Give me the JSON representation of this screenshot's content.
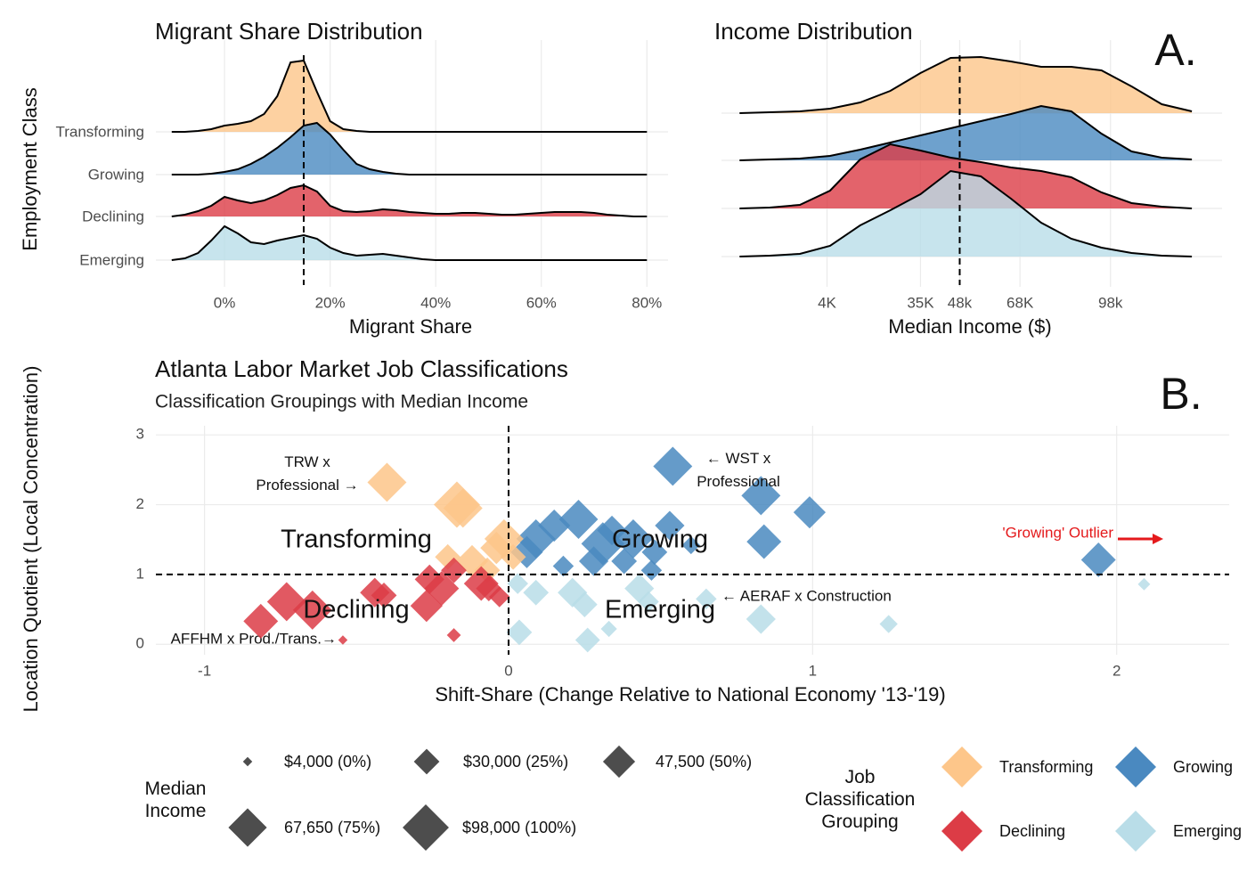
{
  "chart_data": [
    {
      "type": "ridgeline",
      "title": "Migrant Share Distribution",
      "y_label": "Employment Class",
      "x_label": "Migrant Share",
      "xlim": [
        -0.13,
        0.84
      ],
      "xticks": [
        {
          "value": 0,
          "label": "0%"
        },
        {
          "value": 0.2,
          "label": "20%"
        },
        {
          "value": 0.4,
          "label": "40%"
        },
        {
          "value": 0.6,
          "label": "60%"
        },
        {
          "value": 0.8,
          "label": "80%"
        }
      ],
      "median": 0.15,
      "x": [
        -0.1,
        -0.075,
        -0.05,
        -0.025,
        0,
        0.025,
        0.05,
        0.075,
        0.1,
        0.125,
        0.15,
        0.175,
        0.2,
        0.225,
        0.25,
        0.275,
        0.3,
        0.325,
        0.35,
        0.375,
        0.4,
        0.425,
        0.45,
        0.475,
        0.5,
        0.525,
        0.55,
        0.575,
        0.6,
        0.625,
        0.65,
        0.675,
        0.7,
        0.725,
        0.75,
        0.775,
        0.8
      ],
      "series": [
        {
          "name": "Transforming",
          "color": "#fdc68a",
          "values": [
            0,
            0,
            0.1,
            0.3,
            0.7,
            0.9,
            1.2,
            2.0,
            4.0,
            7.8,
            8.0,
            4.5,
            1.2,
            0.3,
            0.1,
            0,
            0,
            0,
            0,
            0,
            0,
            0,
            0,
            0,
            0,
            0,
            0,
            0,
            0,
            0,
            0,
            0,
            0,
            0,
            0,
            0,
            0
          ]
        },
        {
          "name": "Growing",
          "color": "#4a89c0",
          "values": [
            0,
            0,
            0,
            0.1,
            0.3,
            0.6,
            1.2,
            2.0,
            3.0,
            4.2,
            5.5,
            5.8,
            4.5,
            2.8,
            1.2,
            0.6,
            0.3,
            0.1,
            0,
            0,
            0,
            0,
            0,
            0,
            0,
            0,
            0,
            0,
            0,
            0,
            0,
            0,
            0,
            0,
            0,
            0,
            0
          ]
        },
        {
          "name": "Declining",
          "color": "#dc3c46",
          "values": [
            0,
            0.2,
            0.6,
            1.2,
            2.2,
            1.8,
            1.5,
            1.8,
            2.4,
            3.2,
            3.5,
            2.8,
            1.2,
            0.6,
            0.5,
            0.6,
            0.8,
            0.7,
            0.5,
            0.4,
            0.3,
            0.3,
            0.4,
            0.4,
            0.3,
            0.2,
            0.2,
            0.3,
            0.4,
            0.5,
            0.5,
            0.5,
            0.4,
            0.2,
            0.1,
            0,
            0
          ]
        },
        {
          "name": "Emerging",
          "color": "#b9dde8",
          "values": [
            0,
            0.2,
            0.8,
            2.2,
            3.8,
            3.0,
            2.0,
            1.8,
            2.2,
            2.5,
            2.8,
            2.4,
            1.4,
            0.8,
            0.5,
            0.6,
            0.7,
            0.5,
            0.3,
            0.1,
            0,
            0,
            0,
            0,
            0,
            0,
            0,
            0,
            0,
            0,
            0,
            0,
            0,
            0,
            0,
            0,
            0
          ]
        }
      ]
    },
    {
      "type": "ridgeline",
      "title": "Income Distribution",
      "x_label": "Median Income ($)",
      "panel_label": "A.",
      "xlim": [
        -31000,
        135000
      ],
      "xticks": [
        {
          "value": 4000,
          "label": "4K"
        },
        {
          "value": 35000,
          "label": "35K"
        },
        {
          "value": 48000,
          "label": "48k"
        },
        {
          "value": 68000,
          "label": "68K"
        },
        {
          "value": 98000,
          "label": "98k"
        }
      ],
      "median": 48000,
      "x": [
        -25000,
        -15000,
        -5000,
        5000,
        15000,
        25000,
        35000,
        45000,
        55000,
        65000,
        75000,
        85000,
        95000,
        105000,
        115000,
        125000
      ],
      "series": [
        {
          "color": "#fdc68a",
          "values": [
            0,
            0.1,
            0.2,
            0.5,
            1.2,
            2.5,
            4.5,
            6.2,
            6.3,
            5.8,
            5.2,
            5.2,
            4.8,
            3.0,
            1.0,
            0.2
          ]
        },
        {
          "color": "#4a89c0",
          "values": [
            0,
            0.1,
            0.2,
            0.5,
            1.2,
            2.0,
            2.8,
            3.6,
            4.4,
            5.2,
            6.1,
            5.5,
            3.0,
            1.0,
            0.3,
            0.1
          ]
        },
        {
          "color": "#dc3c46",
          "values": [
            0,
            0.1,
            0.4,
            2.0,
            5.5,
            7.2,
            6.5,
            5.7,
            5.2,
            4.6,
            4.2,
            3.5,
            1.8,
            0.6,
            0.2,
            0
          ]
        },
        {
          "color": "#b9dde8",
          "values": [
            0,
            0.1,
            0.3,
            1.2,
            3.5,
            5.2,
            7.0,
            9.6,
            9.0,
            6.5,
            3.8,
            2.0,
            1.0,
            0.4,
            0.1,
            0
          ]
        }
      ]
    },
    {
      "type": "scatter",
      "title": "Atlanta Labor Market Job Classifications",
      "subtitle": "Classification Groupings with Median Income",
      "panel_label": "B.",
      "x_label": "Shift-Share (Change Relative to National Economy '13-'19)",
      "y_label": "Location Quotient (Local Concentration)",
      "xlim": [
        -1.16,
        2.37
      ],
      "ylim": [
        -0.15,
        3.13
      ],
      "xticks": [
        -1,
        0,
        1,
        2
      ],
      "yticks": [
        0,
        1,
        2,
        3
      ],
      "reference_x": 0,
      "reference_y": 1,
      "series": [
        {
          "name": "Transforming",
          "color": "#fdc68a",
          "x": [
            -0.4,
            -0.17,
            -0.15,
            -0.015,
            -0.04,
            -0.2,
            -0.12,
            0.015,
            -0.07
          ],
          "y": [
            2.32,
            2.0,
            1.95,
            1.51,
            1.38,
            1.25,
            1.19,
            1.25,
            1.06
          ],
          "size": [
            70000,
            98000,
            70000,
            70000,
            47500,
            30000,
            47500,
            30000,
            30000
          ]
        },
        {
          "name": "Growing",
          "color": "#4a89c0",
          "x": [
            0.54,
            0.83,
            0.99,
            0.84,
            1.94,
            0.53,
            0.23,
            0.34,
            0.15,
            0.09,
            0.06,
            0.31,
            0.41,
            0.48,
            0.28,
            0.38,
            0.6,
            0.18,
            0.47
          ],
          "y": [
            2.55,
            2.13,
            1.89,
            1.47,
            1.21,
            1.7,
            1.79,
            1.63,
            1.7,
            1.51,
            1.32,
            1.44,
            1.51,
            1.32,
            1.19,
            1.19,
            1.42,
            1.12,
            1.06
          ],
          "size": [
            70000,
            70000,
            47500,
            55000,
            55000,
            40000,
            70000,
            40000,
            47500,
            70000,
            47500,
            85000,
            70000,
            30000,
            40000,
            30000,
            15000,
            20000,
            20000
          ]
        },
        {
          "name": "Declining",
          "color": "#dc3c46",
          "x": [
            -0.815,
            -0.73,
            -0.645,
            -0.44,
            -0.41,
            -0.27,
            -0.26,
            -0.22,
            -0.18,
            -0.09,
            -0.065,
            -0.03,
            -0.18,
            -0.545
          ],
          "y": [
            0.33,
            0.61,
            0.49,
            0.74,
            0.7,
            0.55,
            0.93,
            0.8,
            1.06,
            0.87,
            0.8,
            0.68,
            0.13,
            0.06
          ],
          "size": [
            55000,
            70000,
            70000,
            40000,
            30000,
            47500,
            40000,
            55000,
            30000,
            55000,
            30000,
            20000,
            9000,
            4000
          ]
        },
        {
          "name": "Emerging",
          "color": "#b9dde8",
          "x": [
            2.09,
            1.25,
            0.83,
            0.65,
            0.035,
            0.26,
            0.33,
            0.25,
            0.21,
            0.09,
            0.43,
            0.46,
            0.03
          ],
          "y": [
            0.86,
            0.29,
            0.36,
            0.65,
            0.17,
            0.06,
            0.22,
            0.57,
            0.74,
            0.74,
            0.8,
            0.61,
            0.87
          ],
          "size": [
            7000,
            15000,
            40000,
            20000,
            30000,
            28000,
            12000,
            30000,
            40000,
            30000,
            40000,
            20000,
            20000
          ]
        }
      ],
      "annotations": [
        "TRW x Professional →",
        "← WST x Professional",
        "← AERAF x Construction",
        "AFFHM x Prod./Trans.→",
        "'Growing' Outlier"
      ],
      "size_legend": {
        "title": "Median Income",
        "values": [
          4000,
          30000,
          47500,
          67650,
          98000
        ],
        "labels": [
          "$4,000 (0%)",
          "$30,000 (25%)",
          "47,500 (50%)",
          "67,650 (75%)",
          "$98,000 (100%)"
        ]
      },
      "color_legend_title": "Job Classification Grouping"
    }
  ]
}
